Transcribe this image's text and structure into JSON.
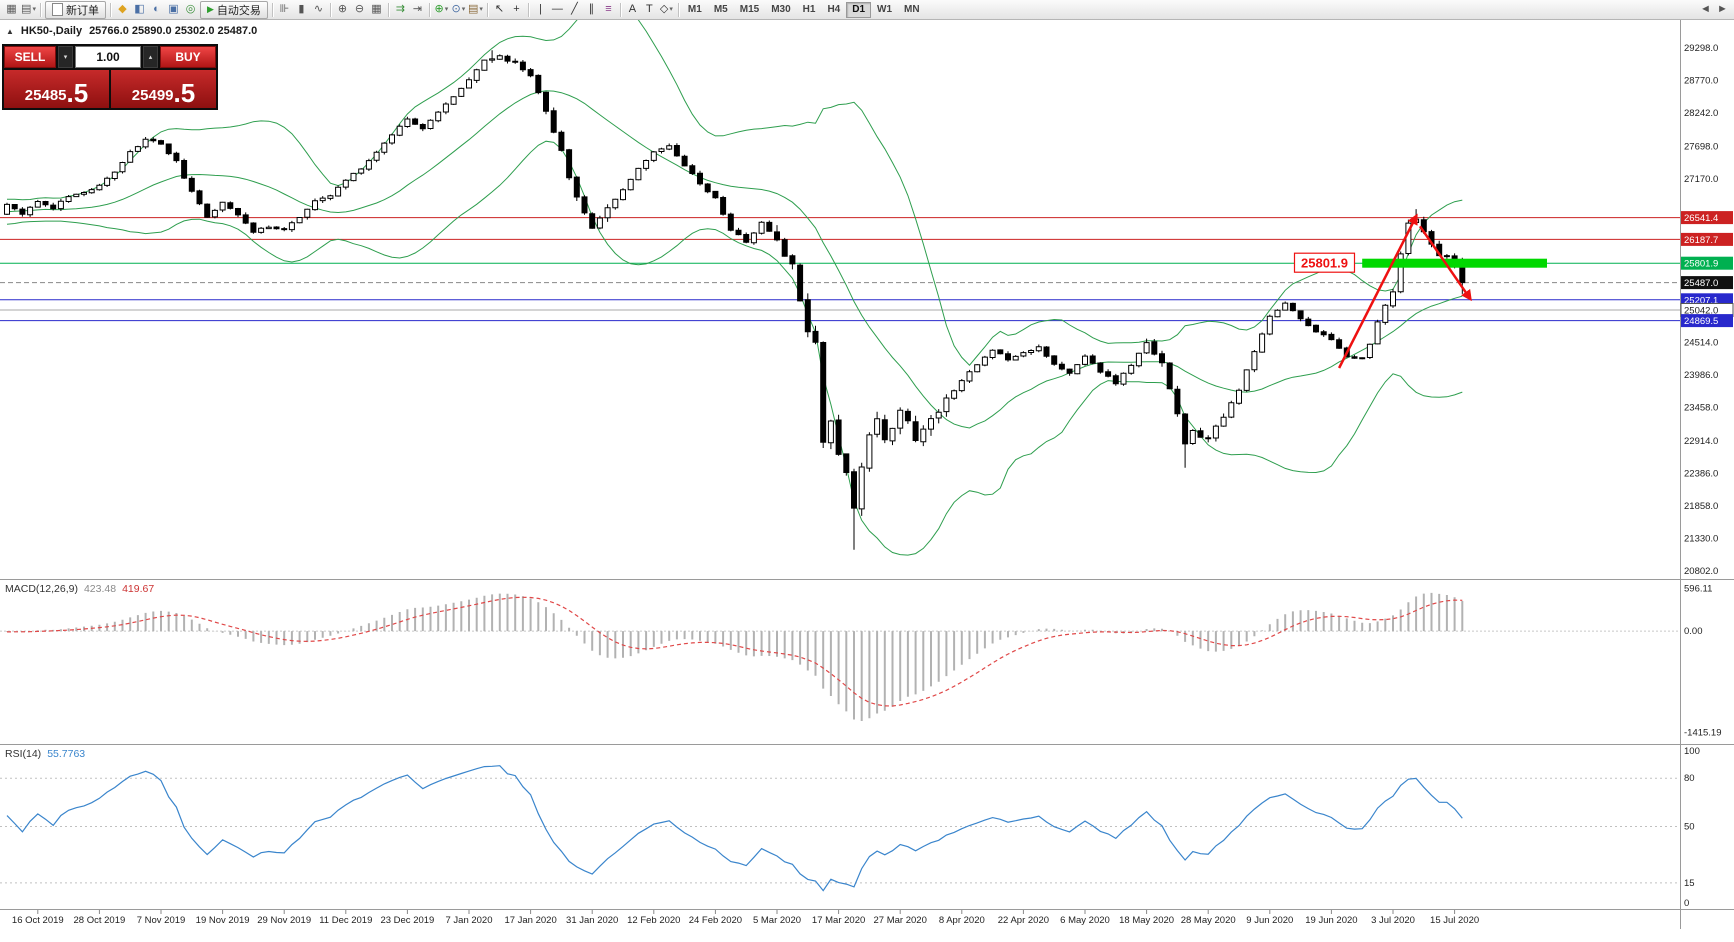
{
  "toolbar": {
    "items": [
      {
        "type": "icon",
        "name": "new-chart-icon",
        "glyph": "▦",
        "color": "#5a5a5a"
      },
      {
        "type": "icon",
        "name": "chart-profiles-icon",
        "glyph": "▤",
        "color": "#5a5a5a",
        "caret": true
      },
      {
        "type": "sep"
      },
      {
        "type": "button",
        "name": "new-order-button",
        "label": "新订单",
        "icon": "new-order-icon"
      },
      {
        "type": "sep"
      },
      {
        "type": "icon",
        "name": "metaquotes-community-icon",
        "glyph": "◆",
        "color": "#dea321"
      },
      {
        "type": "icon",
        "name": "market-watch-icon",
        "glyph": "◧",
        "color": "#4a6fa5"
      },
      {
        "type": "icon",
        "name": "data-window-icon",
        "glyph": "◐",
        "color": "#4a6fa5"
      },
      {
        "type": "icon",
        "name": "navigator-icon",
        "glyph": "▣",
        "color": "#4a6fa5"
      },
      {
        "type": "icon",
        "name": "strategy-tester-icon",
        "glyph": "◎",
        "color": "#3a8f3a"
      },
      {
        "type": "button",
        "name": "autotrading-button",
        "label": "自动交易",
        "icon": "autotrading-play-icon",
        "icon_glyph": "▶",
        "icon_color": "#2e9e2e"
      },
      {
        "type": "sep"
      },
      {
        "type": "icon",
        "name": "bar-chart-icon",
        "glyph": "⊪",
        "color": "#555555"
      },
      {
        "type": "icon",
        "name": "candlestick-chart-icon",
        "glyph": "▮",
        "color": "#555555"
      },
      {
        "type": "icon",
        "name": "line-chart-icon",
        "glyph": "∿",
        "color": "#555555"
      },
      {
        "type": "sep"
      },
      {
        "type": "icon",
        "name": "zoom-in-icon",
        "glyph": "⊕",
        "color": "#555555"
      },
      {
        "type": "icon",
        "name": "zoom-out-icon",
        "glyph": "⊖",
        "color": "#555555"
      },
      {
        "type": "icon",
        "name": "tile-windows-icon",
        "glyph": "▦",
        "color": "#555555"
      },
      {
        "type": "sep"
      },
      {
        "type": "icon",
        "name": "auto-scroll-icon",
        "glyph": "⇉",
        "color": "#3a8f3a"
      },
      {
        "type": "icon",
        "name": "chart-shift-icon",
        "glyph": "⇥",
        "color": "#555555"
      },
      {
        "type": "sep"
      },
      {
        "type": "icon",
        "name": "indicators-icon",
        "glyph": "⊕",
        "color": "#2e9e2e",
        "caret": true
      },
      {
        "type": "icon",
        "name": "periods-icon",
        "glyph": "⊙",
        "color": "#4a6fa5",
        "caret": true
      },
      {
        "type": "icon",
        "name": "templates-icon",
        "glyph": "▤",
        "color": "#8a6a3a",
        "caret": true
      },
      {
        "type": "sep"
      },
      {
        "type": "icon",
        "name": "cursor-icon",
        "glyph": "↖",
        "color": "#333333"
      },
      {
        "type": "icon",
        "name": "crosshair-icon",
        "glyph": "+",
        "color": "#333333"
      },
      {
        "type": "sep"
      },
      {
        "type": "icon",
        "name": "vertical-line-icon",
        "glyph": "|",
        "color": "#333333"
      },
      {
        "type": "icon",
        "name": "horizontal-line-icon",
        "glyph": "—",
        "color": "#333333"
      },
      {
        "type": "icon",
        "name": "trendline-icon",
        "glyph": "╱",
        "color": "#333333"
      },
      {
        "type": "icon",
        "name": "equidistant-channel-icon",
        "glyph": "∥",
        "color": "#333333"
      },
      {
        "type": "icon",
        "name": "fibonacci-retracement-icon",
        "glyph": "≡",
        "color": "#8a3a8a"
      },
      {
        "type": "sep"
      },
      {
        "type": "icon",
        "name": "text-icon",
        "glyph": "A",
        "color": "#333333"
      },
      {
        "type": "icon",
        "name": "text-label-icon",
        "glyph": "T",
        "color": "#333333"
      },
      {
        "type": "icon",
        "name": "shapes-icon",
        "glyph": "◇",
        "color": "#333333",
        "caret": true
      },
      {
        "type": "sep"
      },
      {
        "type": "tf",
        "name": "timeframe-m1-button",
        "label": "M1"
      },
      {
        "type": "tf",
        "name": "timeframe-m5-button",
        "label": "M5"
      },
      {
        "type": "tf",
        "name": "timeframe-m15-button",
        "label": "M15"
      },
      {
        "type": "tf",
        "name": "timeframe-m30-button",
        "label": "M30"
      },
      {
        "type": "tf",
        "name": "timeframe-h1-button",
        "label": "H1"
      },
      {
        "type": "tf",
        "name": "timeframe-h4-button",
        "label": "H4"
      },
      {
        "type": "tf",
        "name": "timeframe-d1-button",
        "label": "D1",
        "active": true
      },
      {
        "type": "tf",
        "name": "timeframe-w1-button",
        "label": "W1"
      },
      {
        "type": "tf",
        "name": "timeframe-mn-button",
        "label": "MN"
      },
      {
        "type": "spacer"
      },
      {
        "type": "icon",
        "name": "scroll-back-icon",
        "glyph": "◄",
        "color": "#555555"
      },
      {
        "type": "icon",
        "name": "scroll-forward-icon",
        "glyph": "►",
        "color": "#555555"
      }
    ]
  },
  "chart": {
    "collapse_glyph": "▲",
    "title_symbol_period": "HK50-,Daily",
    "title_ohlc": "25766.0 25890.0 25302.0 25487.0"
  },
  "trade_panel": {
    "sell_label": "SELL",
    "buy_label": "BUY",
    "volume": "1.00",
    "sell_price_main": "25485",
    "sell_price_frac": ".5",
    "buy_price_main": "25499",
    "buy_price_frac": ".5"
  },
  "indicators": {
    "macd": {
      "label": "MACD(12,26,9)",
      "value_main": "423.48",
      "value_signal": "419.67"
    },
    "rsi": {
      "label": "RSI(14)",
      "value": "55.7763"
    }
  },
  "chart_data": {
    "type": "candlestick",
    "symbol": "HK50-",
    "timeframe": "Daily",
    "last_candle": {
      "open": 25766.0,
      "high": 25890.0,
      "low": 25302.0,
      "close": 25487.0
    },
    "num_candles": 190,
    "lead_in": 40,
    "seed": 11,
    "scale": {
      "price_top": 29750,
      "price_bottom": 20690
    },
    "price_axis_ticks": [
      29298.0,
      28770.0,
      28242.0,
      27698.0,
      27170.0,
      24514.0,
      23986.0,
      23458.0,
      22914.0,
      22386.0,
      21858.0,
      21330.0,
      20802.0
    ],
    "hlines": [
      {
        "price": 26541.4,
        "label": "26541.4",
        "color": "#cc2222",
        "label_bg": "#cc2222",
        "label_fg": "#ffffff"
      },
      {
        "price": 26187.7,
        "label": "26187.7",
        "color": "#cc2222",
        "label_bg": "#cc2222",
        "label_fg": "#ffffff"
      },
      {
        "price": 25801.9,
        "label": "25801.9",
        "color": "#00b050",
        "label_bg": "#00b050",
        "label_fg": "#ffffff"
      },
      {
        "price": 25487.0,
        "label": "25487.0",
        "color": "#888888",
        "style": "dash",
        "label_bg": "#111111",
        "label_fg": "#ffffff"
      },
      {
        "price": 25207.1,
        "label": "25207.1",
        "color": "#2929cc",
        "label_bg": "#2929cc",
        "label_fg": "#ffffff"
      },
      {
        "price": 25042.0,
        "label": "25042.0",
        "color": "#aaaaaa",
        "label_bg": "#ffffff",
        "label_fg": "#222222",
        "label_border": "#555555"
      },
      {
        "price": 24869.5,
        "label": "24869.5",
        "color": "#2929cc",
        "label_bg": "#2929cc",
        "label_fg": "#ffffff"
      }
    ],
    "macd_scale": {
      "range": [
        -1550,
        700
      ]
    },
    "macd_axis": [
      {
        "label": "596.11",
        "value": 596.11
      },
      {
        "label": "0.00",
        "value": 0
      },
      {
        "label": "-1415.19",
        "value": -1415.19
      }
    ],
    "rsi_axis": [
      {
        "label": "100",
        "value": 100
      },
      {
        "label": "80",
        "value": 80
      },
      {
        "label": "50",
        "value": 50
      },
      {
        "label": "15",
        "value": 15
      },
      {
        "label": "0",
        "value": 0
      }
    ],
    "rsi_levels": [
      80,
      50,
      15
    ],
    "bollinger": {
      "period": 20,
      "deviation": 2,
      "color": "#2e9e4e"
    },
    "macd": {
      "fast": 12,
      "slow": 26,
      "signal": 9,
      "histogram_color": "#b2b2b2",
      "signal_color": "#e04848"
    },
    "rsi": {
      "period": 14,
      "color": "#3a85cc"
    },
    "date_labels": [
      {
        "i": 4,
        "label": "16 Oct 2019"
      },
      {
        "i": 12,
        "label": "28 Oct 2019"
      },
      {
        "i": 20,
        "label": "7 Nov 2019"
      },
      {
        "i": 28,
        "label": "19 Nov 2019"
      },
      {
        "i": 36,
        "label": "29 Nov 2019"
      },
      {
        "i": 44,
        "label": "11 Dec 2019"
      },
      {
        "i": 52,
        "label": "23 Dec 2019"
      },
      {
        "i": 60,
        "label": "7 Jan 2020"
      },
      {
        "i": 68,
        "label": "17 Jan 2020"
      },
      {
        "i": 76,
        "label": "31 Jan 2020"
      },
      {
        "i": 84,
        "label": "12 Feb 2020"
      },
      {
        "i": 92,
        "label": "24 Feb 2020"
      },
      {
        "i": 100,
        "label": "5 Mar 2020"
      },
      {
        "i": 108,
        "label": "17 Mar 2020"
      },
      {
        "i": 116,
        "label": "27 Mar 2020"
      },
      {
        "i": 124,
        "label": "8 Apr 2020"
      },
      {
        "i": 132,
        "label": "22 Apr 2020"
      },
      {
        "i": 140,
        "label": "6 May 2020"
      },
      {
        "i": 148,
        "label": "18 May 2020"
      },
      {
        "i": 156,
        "label": "28 May 2020"
      },
      {
        "i": 164,
        "label": "9 Jun 2020"
      },
      {
        "i": 172,
        "label": "19 Jun 2020"
      },
      {
        "i": 180,
        "label": "3 Jul 2020"
      },
      {
        "i": 188,
        "label": "15 Jul 2020"
      }
    ],
    "anchors": [
      [
        0,
        26750
      ],
      [
        2,
        26600
      ],
      [
        4,
        26800
      ],
      [
        6,
        26700
      ],
      [
        8,
        26900
      ],
      [
        10,
        26950
      ],
      [
        12,
        27050
      ],
      [
        14,
        27300
      ],
      [
        16,
        27600
      ],
      [
        18,
        27820
      ],
      [
        20,
        27740
      ],
      [
        22,
        27450
      ],
      [
        24,
        26950
      ],
      [
        26,
        26550
      ],
      [
        28,
        26800
      ],
      [
        30,
        26600
      ],
      [
        32,
        26300
      ],
      [
        34,
        26400
      ],
      [
        36,
        26350
      ],
      [
        38,
        26550
      ],
      [
        40,
        26800
      ],
      [
        42,
        26900
      ],
      [
        44,
        27150
      ],
      [
        46,
        27350
      ],
      [
        48,
        27600
      ],
      [
        50,
        27900
      ],
      [
        52,
        28150
      ],
      [
        54,
        28000
      ],
      [
        56,
        28250
      ],
      [
        58,
        28500
      ],
      [
        60,
        28800
      ],
      [
        62,
        29100
      ],
      [
        64,
        29150
      ],
      [
        66,
        29050
      ],
      [
        68,
        28850
      ],
      [
        70,
        28300
      ],
      [
        72,
        27600
      ],
      [
        74,
        26850
      ],
      [
        76,
        26400
      ],
      [
        78,
        26700
      ],
      [
        80,
        27000
      ],
      [
        82,
        27350
      ],
      [
        84,
        27600
      ],
      [
        86,
        27720
      ],
      [
        88,
        27400
      ],
      [
        90,
        27100
      ],
      [
        92,
        26850
      ],
      [
        94,
        26350
      ],
      [
        96,
        26150
      ],
      [
        98,
        26450
      ],
      [
        100,
        26200
      ],
      [
        102,
        25750
      ],
      [
        104,
        24750
      ],
      [
        105,
        24500
      ],
      [
        106,
        22950
      ],
      [
        107,
        23250
      ],
      [
        108,
        22700
      ],
      [
        109,
        22400
      ],
      [
        110,
        21800
      ],
      [
        111,
        22500
      ],
      [
        112,
        23050
      ],
      [
        113,
        23300
      ],
      [
        114,
        22950
      ],
      [
        115,
        23150
      ],
      [
        116,
        23450
      ],
      [
        118,
        22950
      ],
      [
        120,
        23250
      ],
      [
        122,
        23600
      ],
      [
        124,
        23900
      ],
      [
        126,
        24150
      ],
      [
        128,
        24400
      ],
      [
        130,
        24250
      ],
      [
        132,
        24350
      ],
      [
        134,
        24450
      ],
      [
        136,
        24150
      ],
      [
        138,
        24000
      ],
      [
        140,
        24300
      ],
      [
        142,
        24050
      ],
      [
        144,
        23850
      ],
      [
        146,
        24150
      ],
      [
        148,
        24500
      ],
      [
        150,
        24200
      ],
      [
        152,
        23350
      ],
      [
        153,
        22850
      ],
      [
        154,
        23050
      ],
      [
        156,
        22950
      ],
      [
        158,
        23300
      ],
      [
        160,
        23750
      ],
      [
        162,
        24350
      ],
      [
        164,
        24950
      ],
      [
        166,
        25150
      ],
      [
        168,
        24900
      ],
      [
        170,
        24700
      ],
      [
        172,
        24550
      ],
      [
        174,
        24300
      ],
      [
        176,
        24250
      ],
      [
        177,
        24500
      ],
      [
        178,
        24850
      ],
      [
        180,
        25350
      ],
      [
        181,
        25950
      ],
      [
        182,
        26450
      ],
      [
        183,
        26500
      ],
      [
        184,
        26300
      ],
      [
        185,
        26100
      ],
      [
        186,
        25900
      ],
      [
        187,
        25950
      ],
      [
        188,
        25770
      ],
      [
        189,
        25487
      ]
    ],
    "volatility": {
      "base": 70,
      "zones": [
        [
          60,
          68,
          1.3
        ],
        [
          70,
          78,
          1.9
        ],
        [
          100,
          122,
          3.2
        ],
        [
          148,
          158,
          1.8
        ],
        [
          180,
          189,
          1.5
        ]
      ]
    },
    "wick_overrides": [
      {
        "index": 63,
        "high": 29260
      },
      {
        "index": 106,
        "low": 22800
      },
      {
        "index": 110,
        "low": 21150
      },
      {
        "index": 153,
        "low": 22480
      },
      {
        "index": 183,
        "high": 26680
      }
    ],
    "annotations": {
      "price_label": {
        "text": "25801.9",
        "price": 25801.9,
        "end_index": 175,
        "color": "#ee1111"
      },
      "zone": {
        "from_index": 176,
        "to_index": 200,
        "price": 25801.9,
        "thickness": 9,
        "color": "#00d800"
      },
      "arrow_color": "#ee1111",
      "arrows": [
        {
          "from_index": 173,
          "from_price": 24100,
          "to_index": 183,
          "to_price": 26560
        },
        {
          "from_index": 183.5,
          "from_price": 26400,
          "to_index": 190,
          "to_price": 25230
        }
      ]
    }
  }
}
